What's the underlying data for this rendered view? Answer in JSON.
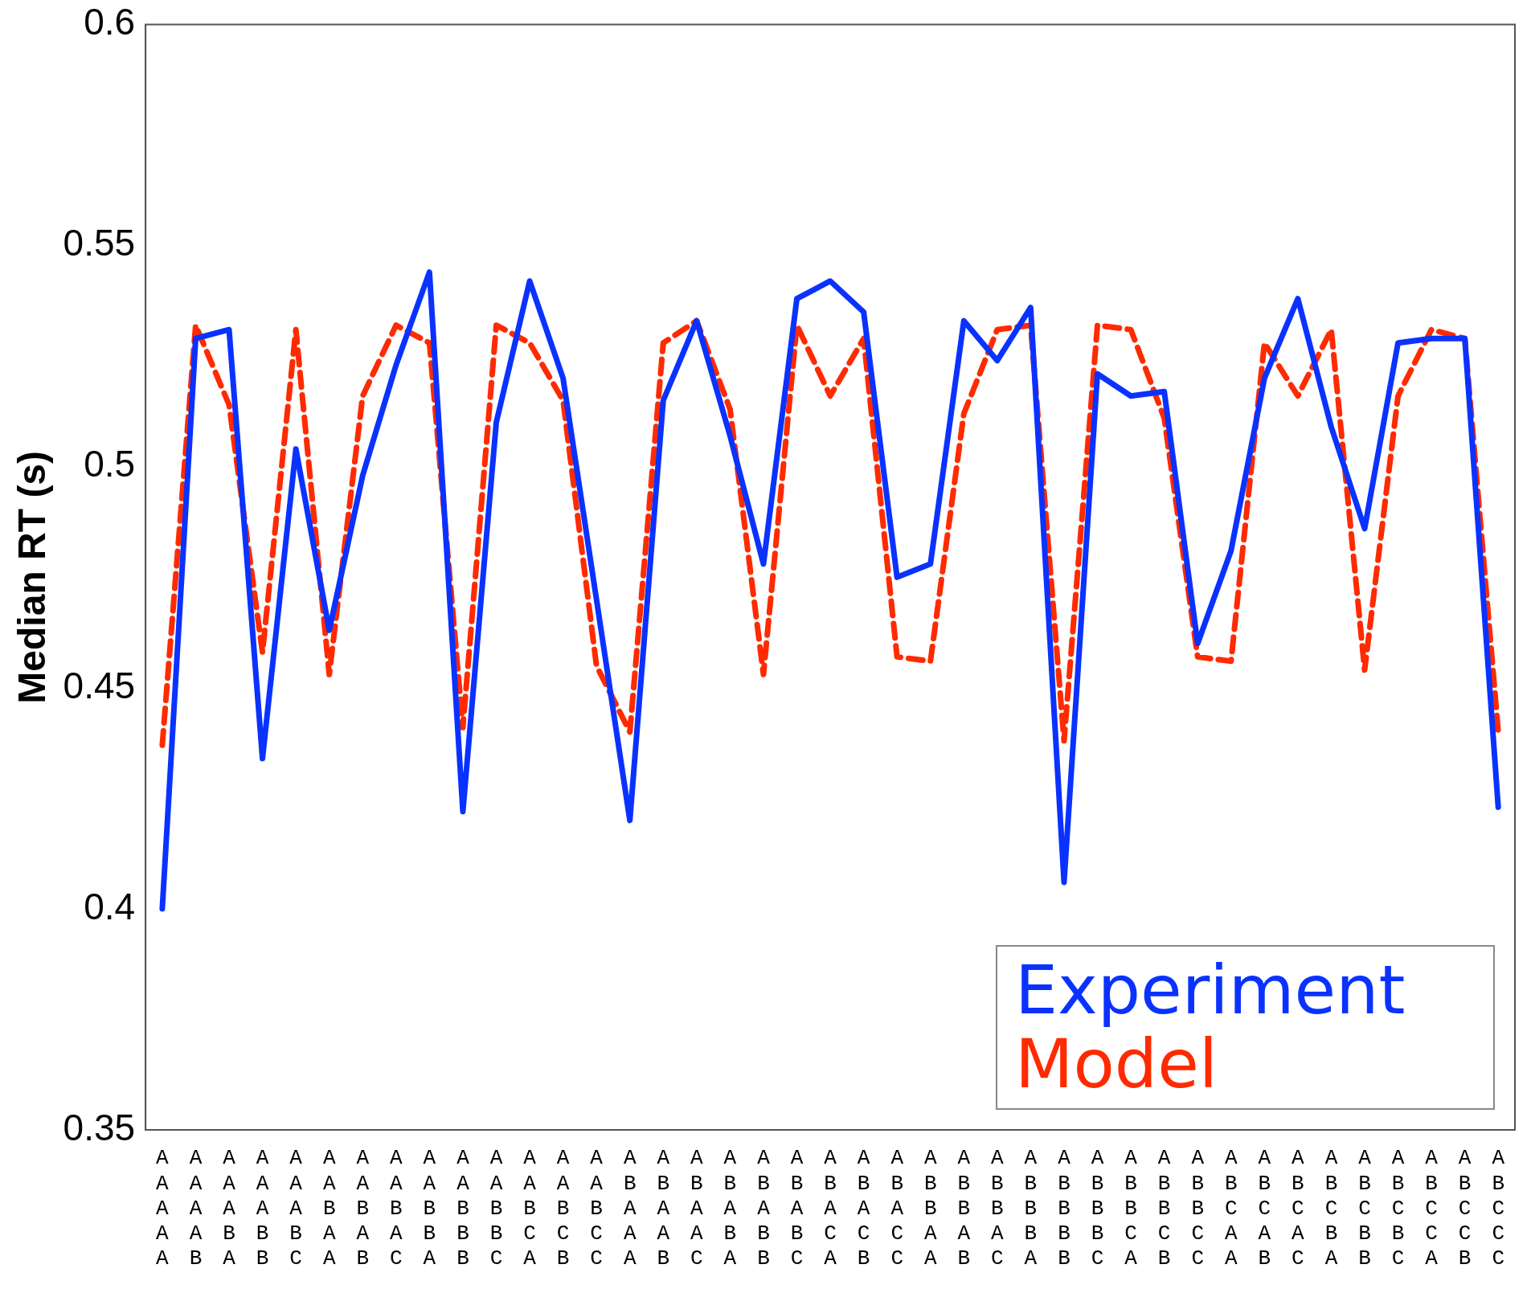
{
  "chart_data": {
    "type": "line",
    "ylabel": "Median RT (s)",
    "categories": [
      "A\nA\nA\nA\nA",
      "A\nA\nA\nA\nB",
      "A\nA\nA\nB\nA",
      "A\nA\nA\nB\nB",
      "A\nA\nA\nB\nC",
      "A\nA\nB\nA\nA",
      "A\nA\nB\nA\nB",
      "A\nA\nB\nA\nC",
      "A\nA\nB\nB\nA",
      "A\nA\nB\nB\nB",
      "A\nA\nB\nB\nC",
      "A\nA\nB\nC\nA",
      "A\nA\nB\nC\nB",
      "A\nA\nB\nC\nC",
      "A\nB\nA\nA\nA",
      "A\nB\nA\nA\nB",
      "A\nB\nA\nA\nC",
      "A\nB\nA\nB\nA",
      "A\nB\nA\nB\nB",
      "A\nB\nA\nB\nC",
      "A\nB\nA\nC\nA",
      "A\nB\nA\nC\nB",
      "A\nB\nA\nC\nC",
      "A\nB\nB\nA\nA",
      "A\nB\nB\nA\nB",
      "A\nB\nB\nA\nC",
      "A\nB\nB\nB\nA",
      "A\nB\nB\nB\nB",
      "A\nB\nB\nB\nC",
      "A\nB\nB\nC\nA",
      "A\nB\nB\nC\nB",
      "A\nB\nB\nC\nC",
      "A\nB\nC\nA\nA",
      "A\nB\nC\nA\nB",
      "A\nB\nC\nA\nC",
      "A\nB\nC\nB\nA",
      "A\nB\nC\nB\nB",
      "A\nB\nC\nB\nC",
      "A\nB\nC\nC\nA",
      "A\nB\nC\nC\nB",
      "A\nB\nC\nC\nC"
    ],
    "series": [
      {
        "name": "Experiment",
        "color": "#0a32ff",
        "line_style": "solid",
        "values": [
          0.4,
          0.529,
          0.531,
          0.434,
          0.504,
          0.463,
          0.498,
          0.523,
          0.544,
          0.422,
          0.51,
          0.542,
          0.52,
          0.47,
          0.42,
          0.515,
          0.533,
          0.507,
          0.478,
          0.538,
          0.542,
          0.535,
          0.475,
          0.478,
          0.533,
          0.524,
          0.536,
          0.406,
          0.521,
          0.516,
          0.517,
          0.46,
          0.481,
          0.52,
          0.538,
          0.509,
          0.486,
          0.528,
          0.529,
          0.529,
          0.423
        ]
      },
      {
        "name": "Model",
        "color": "#ff2a00",
        "line_style": "dashed",
        "values": [
          0.437,
          0.532,
          0.514,
          0.458,
          0.531,
          0.453,
          0.516,
          0.532,
          0.528,
          0.441,
          0.532,
          0.528,
          0.515,
          0.455,
          0.44,
          0.528,
          0.533,
          0.513,
          0.453,
          0.532,
          0.516,
          0.529,
          0.457,
          0.456,
          0.512,
          0.531,
          0.532,
          0.438,
          0.532,
          0.531,
          0.511,
          0.457,
          0.456,
          0.528,
          0.516,
          0.531,
          0.454,
          0.516,
          0.531,
          0.529,
          0.44
        ]
      }
    ],
    "ylim": [
      0.35,
      0.6
    ],
    "yticks": [
      0.35,
      0.4,
      0.45,
      0.5,
      0.55,
      0.6
    ],
    "legend": "bottom right",
    "marker": "none",
    "grid": false
  }
}
